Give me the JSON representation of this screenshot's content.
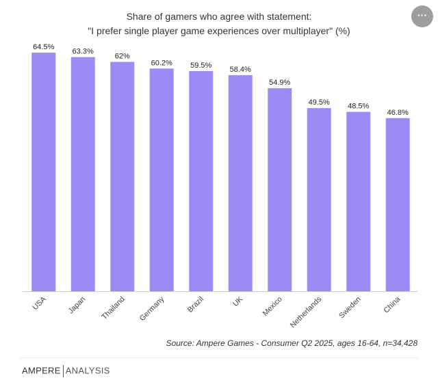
{
  "chart_data": {
    "type": "bar",
    "title": "Share of gamers who agree with statement:",
    "subtitle": "\"I prefer single player game experiences over multiplayer\" (%)",
    "categories": [
      "USA",
      "Japan",
      "Thailand",
      "Germany",
      "Brazil",
      "UK",
      "Mexico",
      "Netherlands",
      "Sweden",
      "China"
    ],
    "values": [
      64.5,
      63.3,
      62,
      60.2,
      59.5,
      58.4,
      54.9,
      49.5,
      48.5,
      46.8
    ],
    "data_labels": [
      "64.5%",
      "63.3%",
      "62%",
      "60.2%",
      "59.5%",
      "58.4%",
      "54.9%",
      "49.5%",
      "48.5%",
      "46.8%"
    ],
    "ylim": [
      0,
      64.5
    ],
    "grid": false,
    "bar_color": "#9d8af5",
    "xlabel": "",
    "ylabel": ""
  },
  "source": "Source: Ampere Games - Consumer Q2 2025, ages 16-64, n=34,428",
  "logo": {
    "left": "AMPERE",
    "right": "ANALYSIS"
  },
  "menu_icon": "ellipsis-icon"
}
